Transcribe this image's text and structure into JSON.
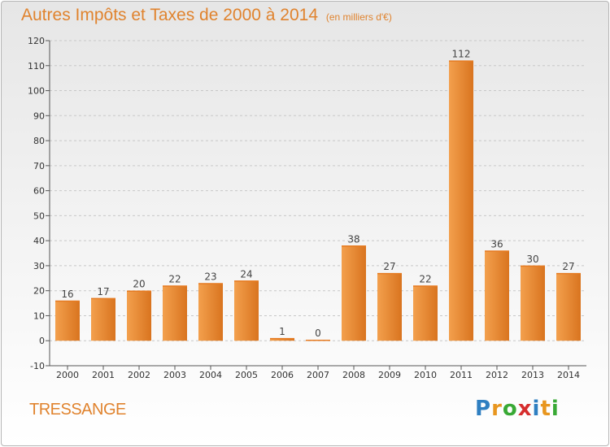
{
  "header": {
    "title": "Autres Impôts et Taxes de 2000 à 2014",
    "subtitle": "(en milliers d'€)"
  },
  "footer": {
    "commune": "TRESSANGE",
    "brand": {
      "letters": [
        "P",
        "r",
        "o",
        "x",
        "i",
        "t",
        "i"
      ],
      "colors": [
        "#2f7fc1",
        "#e8961f",
        "#39a935",
        "#d62e2e",
        "#2f7fc1",
        "#e8961f",
        "#39a935"
      ]
    }
  },
  "colors": {
    "bar_top": "#f3a04d",
    "bar_bottom": "#d9741f",
    "grid": "#c8c8c8",
    "axis": "#555555",
    "accent": "#e0832e"
  },
  "chart_data": {
    "type": "bar",
    "categories": [
      "2000",
      "2001",
      "2002",
      "2003",
      "2004",
      "2005",
      "2006",
      "2007",
      "2008",
      "2009",
      "2010",
      "2011",
      "2012",
      "2013",
      "2014"
    ],
    "values": [
      16,
      17,
      20,
      22,
      23,
      24,
      1,
      0,
      38,
      27,
      22,
      112,
      36,
      30,
      27
    ],
    "ylim": [
      -10,
      120
    ],
    "yticks": [
      -10,
      0,
      10,
      20,
      30,
      40,
      50,
      60,
      70,
      80,
      90,
      100,
      110,
      120
    ],
    "grid": "horizontal-dashed",
    "data_labels": true
  }
}
